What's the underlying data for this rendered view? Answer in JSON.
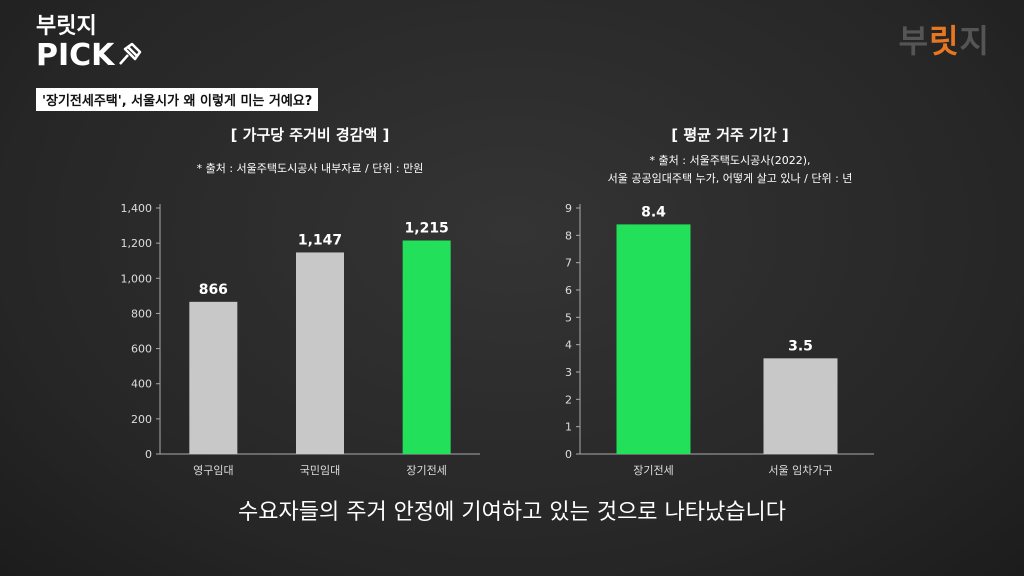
{
  "header": {
    "brand_line1": "부릿지",
    "brand_line2": "PICK",
    "subtitle": "'장기전세주택', 서울시가 왜 이렇게 미는 거예요?",
    "logo_part1": "부",
    "logo_part2": "릿",
    "logo_part3": "지"
  },
  "caption": "수요자들의 주거 안정에 기여하고 있는 것으로 나타났습니다",
  "colors": {
    "gray_bar": "#c8c8c8",
    "green_bar": "#22e05a",
    "accent": "#e87722"
  },
  "chart_data": [
    {
      "type": "bar",
      "title": "[ 가구당 주거비 경감액 ]",
      "source_lines": [
        "* 출처 : 서울주택도시공사 내부자료 / 단위 : 만원"
      ],
      "categories": [
        "영구임대",
        "국민임대",
        "장기전세"
      ],
      "values": [
        866,
        1147,
        1215
      ],
      "value_labels": [
        "866",
        "1,147",
        "1,215"
      ],
      "highlight": [
        false,
        false,
        true
      ],
      "ylim": [
        0,
        1400
      ],
      "yticks": [
        0,
        200,
        400,
        600,
        800,
        1000,
        1200,
        1400
      ],
      "ytick_labels": [
        "0",
        "200",
        "400",
        "600",
        "800",
        "1,000",
        "1,200",
        "1,400"
      ],
      "grid": false
    },
    {
      "type": "bar",
      "title": "[ 평균 거주 기간 ]",
      "source_lines": [
        "* 출처 : 서울주택도시공사(2022),",
        "서울 공공임대주택 누가, 어떻게 살고 있나 / 단위 : 년"
      ],
      "categories": [
        "장기전세",
        "서울 임차가구"
      ],
      "values": [
        8.4,
        3.5
      ],
      "value_labels": [
        "8.4",
        "3.5"
      ],
      "highlight": [
        true,
        false
      ],
      "ylim": [
        0,
        9
      ],
      "yticks": [
        0,
        1,
        2,
        3,
        4,
        5,
        6,
        7,
        8,
        9
      ],
      "ytick_labels": [
        "0",
        "1",
        "2",
        "3",
        "4",
        "5",
        "6",
        "7",
        "8",
        "9"
      ],
      "grid": false
    }
  ]
}
